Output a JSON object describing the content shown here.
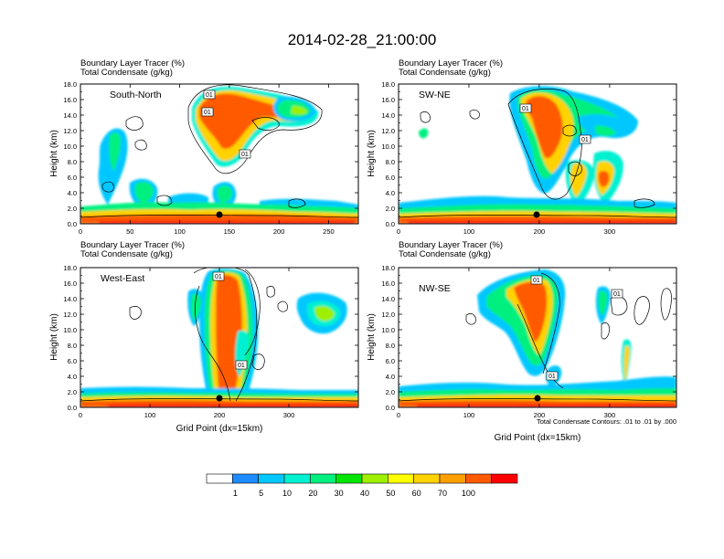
{
  "title": "2014-02-28_21:00:00",
  "field_title_1": "Boundary Layer Tracer   (%)",
  "field_title_2": "Total Condensate   (g/kg)",
  "xlabel": "Grid Point (dx=15km)",
  "ylabel": "Height (km)",
  "contour_note": "Total Condensate Contours: .01 to .01 by .000",
  "contour_label": "01",
  "colorbar": {
    "levels": [
      "1",
      "5",
      "10",
      "20",
      "30",
      "40",
      "50",
      "60",
      "70",
      "100"
    ],
    "colors": [
      "#ffffff",
      "#1e8cff",
      "#00c8ff",
      "#00f0d2",
      "#00f080",
      "#00e600",
      "#9ef000",
      "#ffff00",
      "#ffd200",
      "#ffa000",
      "#ff5a00",
      "#ff0000"
    ]
  },
  "chart_data": [
    {
      "type": "heatmap",
      "cross_section": "South-North",
      "xlim": [
        0,
        280
      ],
      "xticks": [
        "0",
        "50",
        "100",
        "150",
        "200",
        "250"
      ],
      "ylim": [
        0,
        18
      ],
      "yticks": [
        "0.0",
        "2.0",
        "4.0",
        "6.0",
        "8.0",
        "10.0",
        "12.0",
        "14.0",
        "16.0",
        "18.0"
      ],
      "marker_x": 140
    },
    {
      "type": "heatmap",
      "cross_section": "SW-NE",
      "xlim": [
        0,
        395
      ],
      "xticks": [
        "0",
        "100",
        "200",
        "300"
      ],
      "ylim": [
        0,
        18
      ],
      "yticks": [
        "0.0",
        "2.0",
        "4.0",
        "6.0",
        "8.0",
        "10.0",
        "12.0",
        "14.0",
        "16.0",
        "18.0"
      ],
      "marker_x": 197
    },
    {
      "type": "heatmap",
      "cross_section": "West-East",
      "xlim": [
        0,
        400
      ],
      "xticks": [
        "0",
        "100",
        "200",
        "300"
      ],
      "ylim": [
        0,
        18
      ],
      "yticks": [
        "0.0",
        "2.0",
        "4.0",
        "6.0",
        "8.0",
        "10.0",
        "12.0",
        "14.0",
        "16.0",
        "18.0"
      ],
      "marker_x": 200
    },
    {
      "type": "heatmap",
      "cross_section": "NW-SE",
      "xlim": [
        0,
        395
      ],
      "xticks": [
        "0",
        "100",
        "200",
        "300"
      ],
      "ylim": [
        0,
        18
      ],
      "yticks": [
        "0.0",
        "2.0",
        "4.0",
        "6.0",
        "8.0",
        "10.0",
        "12.0",
        "14.0",
        "16.0",
        "18.0"
      ],
      "marker_x": 198
    }
  ]
}
